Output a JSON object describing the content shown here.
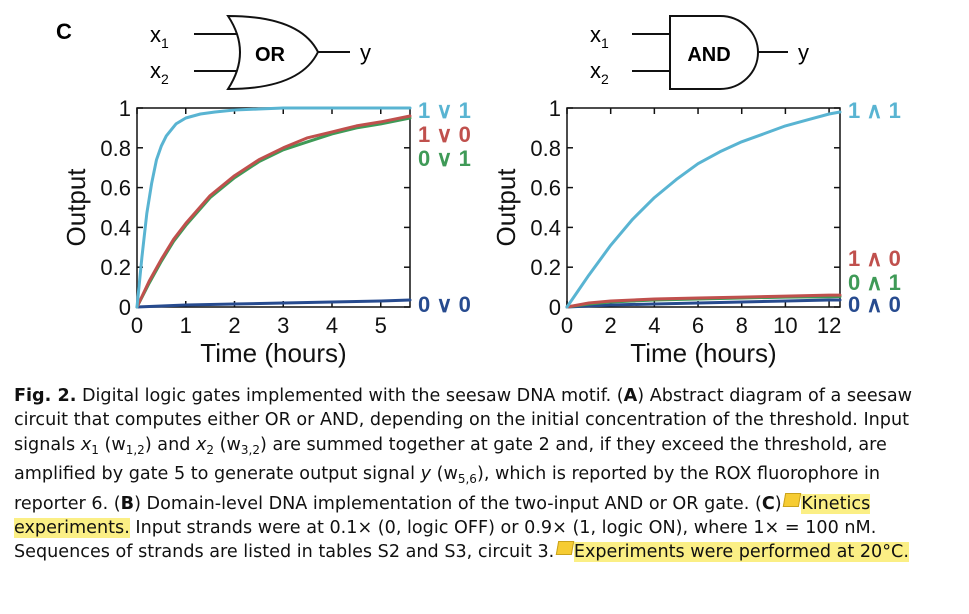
{
  "panel_label": "C",
  "gates": [
    {
      "name": "OR",
      "inputs": [
        "x1",
        "x2"
      ],
      "output": "y"
    },
    {
      "name": "AND",
      "inputs": [
        "x1",
        "x2"
      ],
      "output": "y"
    }
  ],
  "chart_data": [
    {
      "type": "line",
      "xlabel": "Time (hours)",
      "ylabel": "Output",
      "xlim": [
        0,
        5.6
      ],
      "ylim": [
        0,
        1
      ],
      "xticks": [
        "0",
        "1",
        "2",
        "3",
        "4",
        "5"
      ],
      "yticks": [
        "0",
        "0.2",
        "0.4",
        "0.6",
        "0.8",
        "1"
      ],
      "grid": false,
      "series": [
        {
          "name": "1 ∨ 1",
          "color": "#59b4d2",
          "x": [
            0,
            0.1,
            0.2,
            0.3,
            0.4,
            0.5,
            0.6,
            0.8,
            1.0,
            1.3,
            1.6,
            2.0,
            2.5,
            3.0,
            4.0,
            5.0,
            5.6
          ],
          "y": [
            0,
            0.25,
            0.47,
            0.62,
            0.74,
            0.81,
            0.86,
            0.92,
            0.95,
            0.97,
            0.98,
            0.99,
            0.995,
            1.0,
            1.0,
            1.0,
            1.0
          ]
        },
        {
          "name": "1 ∨ 0",
          "color": "#c0504d",
          "x": [
            0,
            0.25,
            0.5,
            0.75,
            1.0,
            1.5,
            2.0,
            2.5,
            3.0,
            3.5,
            4.0,
            4.5,
            5.0,
            5.6
          ],
          "y": [
            0,
            0.13,
            0.24,
            0.34,
            0.42,
            0.56,
            0.66,
            0.74,
            0.8,
            0.85,
            0.88,
            0.91,
            0.93,
            0.96
          ]
        },
        {
          "name": "0 ∨ 1",
          "color": "#3f9a57",
          "x": [
            0,
            0.25,
            0.5,
            0.75,
            1.0,
            1.5,
            2.0,
            2.5,
            3.0,
            3.5,
            4.0,
            4.5,
            5.0,
            5.6
          ],
          "y": [
            0,
            0.12,
            0.23,
            0.33,
            0.41,
            0.55,
            0.65,
            0.73,
            0.79,
            0.83,
            0.87,
            0.9,
            0.92,
            0.95
          ]
        },
        {
          "name": "0 ∨ 0",
          "color": "#274b8f",
          "x": [
            0,
            1,
            2,
            3,
            4,
            5,
            5.6
          ],
          "y": [
            0,
            0.01,
            0.015,
            0.02,
            0.025,
            0.03,
            0.035
          ]
        }
      ]
    },
    {
      "type": "line",
      "xlabel": "Time (hours)",
      "ylabel": "Output",
      "xlim": [
        0,
        12.5
      ],
      "ylim": [
        0,
        1
      ],
      "xticks": [
        "0",
        "2",
        "4",
        "6",
        "8",
        "10",
        "12"
      ],
      "yticks": [
        "0",
        "0.2",
        "0.4",
        "0.6",
        "0.8",
        "1"
      ],
      "grid": false,
      "series": [
        {
          "name": "1 ∧ 1",
          "color": "#59b4d2",
          "x": [
            0,
            0.5,
            1,
            2,
            3,
            4,
            5,
            6,
            7,
            8,
            9,
            10,
            11,
            12,
            12.5
          ],
          "y": [
            0,
            0.08,
            0.16,
            0.31,
            0.44,
            0.55,
            0.64,
            0.72,
            0.78,
            0.83,
            0.87,
            0.91,
            0.94,
            0.97,
            0.98
          ]
        },
        {
          "name": "1 ∧ 0",
          "color": "#c0504d",
          "x": [
            0,
            1,
            2,
            4,
            6,
            8,
            10,
            12,
            12.5
          ],
          "y": [
            0,
            0.02,
            0.03,
            0.04,
            0.045,
            0.05,
            0.055,
            0.06,
            0.06
          ]
        },
        {
          "name": "0 ∧ 1",
          "color": "#3f9a57",
          "x": [
            0,
            1,
            2,
            4,
            6,
            8,
            10,
            12,
            12.5
          ],
          "y": [
            0,
            0.015,
            0.025,
            0.035,
            0.04,
            0.045,
            0.05,
            0.052,
            0.053
          ]
        },
        {
          "name": "0 ∧ 0",
          "color": "#274b8f",
          "x": [
            0,
            2,
            4,
            6,
            8,
            10,
            12,
            12.5
          ],
          "y": [
            0,
            0.01,
            0.015,
            0.02,
            0.025,
            0.03,
            0.035,
            0.035
          ]
        }
      ]
    }
  ],
  "caption": {
    "fig_label": "Fig. 2.",
    "text1": " Digital logic gates implemented with the seesaw DNA motif. (",
    "a": "A",
    "text2": ") Abstract diagram of a seesaw circuit that computes either OR or AND, depending on the initial concentration of the threshold. Input signals ",
    "x1": "x",
    "x1_sub": "1",
    "w12_open": " (w",
    "w12_sub": "1,2",
    "and_x2": ") and ",
    "x2": "x",
    "x2_sub": "2",
    "w32_open": " (w",
    "w32_sub": "3,2",
    "text3": ") are summed together at gate 2 and, if they exceed the threshold, are amplified by gate 5 to generate output signal ",
    "y": "y",
    "w56_open": " (w",
    "w56_sub": "5,6",
    "text4": "), which is reported by the ROX fluorophore in reporter 6. (",
    "b": "B",
    "text5": ") Domain-level DNA implementation of the two-input AND or OR gate. (",
    "c": "C",
    "text6": ") ",
    "hl1": "Kinetics experiments.",
    "text7": " Input strands were at 0.1× (0, logic OFF) or 0.9× (1, logic ON), where 1× = 100 nM. Sequences of strands are listed in tables S2 and S3, circuit 3. ",
    "hl2": "Experiments were performed at 20°C."
  }
}
